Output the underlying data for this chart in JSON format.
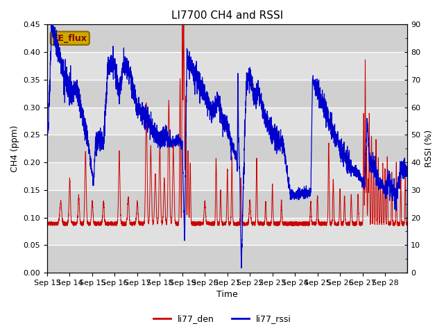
{
  "title": "LI7700 CH4 and RSSI",
  "xlabel": "Time",
  "ylabel_left": "CH4 (ppm)",
  "ylabel_right": "RSSI (%)",
  "xlim_days": [
    0,
    16
  ],
  "ylim_left": [
    0.0,
    0.45
  ],
  "ylim_right": [
    0,
    90
  ],
  "ch4_color": "#cc0000",
  "rssi_color": "#0000cc",
  "legend_labels": [
    "li77_den",
    "li77_rssi"
  ],
  "annotation_text": "EE_flux",
  "annotation_facecolor": "#ccaa00",
  "annotation_edgecolor": "#886600",
  "annotation_textcolor": "#880000",
  "bg_color": "#e0e0e0",
  "bg_band_color": "#d0d0d0",
  "xtick_labels": [
    "Sep 13",
    "Sep 14",
    "Sep 15",
    "Sep 16",
    "Sep 17",
    "Sep 18",
    "Sep 19",
    "Sep 20",
    "Sep 21",
    "Sep 22",
    "Sep 23",
    "Sep 24",
    "Sep 25",
    "Sep 26",
    "Sep 27",
    "Sep 28"
  ],
  "yticks_left": [
    0.0,
    0.05,
    0.1,
    0.15,
    0.2,
    0.25,
    0.3,
    0.35,
    0.4,
    0.45
  ],
  "yticks_right": [
    0,
    10,
    20,
    30,
    40,
    50,
    60,
    70,
    80,
    90
  ],
  "title_fontsize": 11,
  "label_fontsize": 9,
  "tick_fontsize": 8
}
